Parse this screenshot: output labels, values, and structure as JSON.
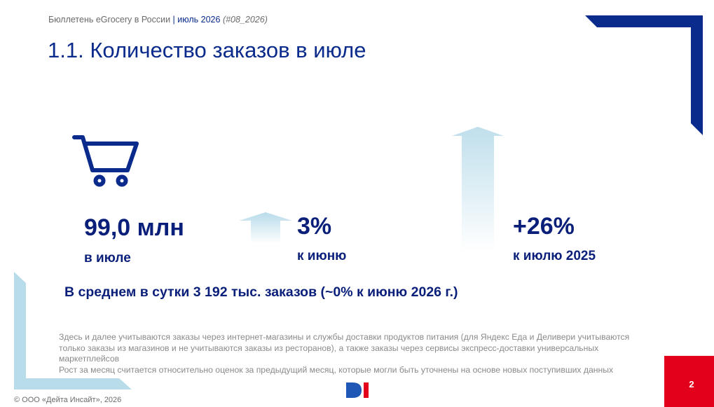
{
  "header": {
    "bulletin": "Бюллетень eGrocery в России",
    "separator": "|",
    "period": "июль 2026",
    "code": "(#08_2026)"
  },
  "title": "1.1. Количество заказов в июле",
  "metrics": [
    {
      "value": "99,0 млн",
      "label": "в июле"
    },
    {
      "value": "3%",
      "label": "к июню"
    },
    {
      "value": "+26%",
      "label": "к июлю 2025"
    }
  ],
  "average": "В среднем в сутки 3 192 тыс. заказов (~0% к июню 2026 г.)",
  "notes": [
    "Здесь и далее учитываются заказы через интернет-магазины и службы доставки продуктов питания (для Яндекс Еда и Деливери учитываются только заказы из магазинов и не учитываются заказы из ресторанов), а также заказы через сервисы экспресс-доставки универсальных маркетплейсов",
    "Рост за месяц считается относительно оценок за предыдущий месяц, которые могли быть уточнены на основе новых поступивших данных"
  ],
  "footer": {
    "copyright": "© ООО «Дейта Инсайт», 2026",
    "page": "2"
  },
  "icons": [
    "cart-icon",
    "arrow-up-small-icon",
    "arrow-up-large-icon",
    "di-logo"
  ],
  "colors": {
    "navy": "#0a2a8c",
    "light_blue": "#b9dcea",
    "red": "#e3001b"
  }
}
